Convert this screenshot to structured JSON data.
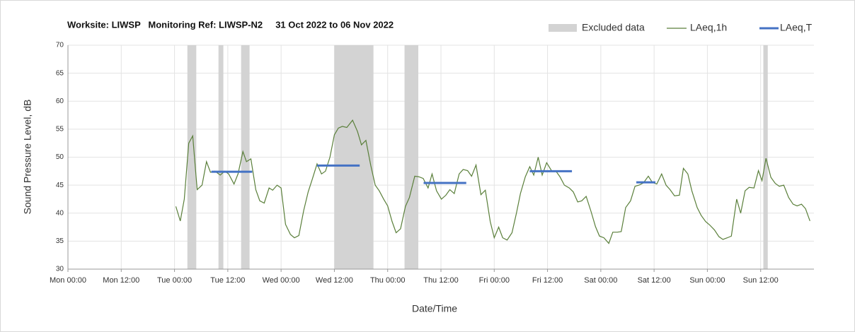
{
  "chart_data": {
    "type": "line",
    "title": "Worksite: LIWSP   Monitoring Ref: LIWSP-N2     31 Oct 2022 to 06 Nov 2022",
    "xlabel": "Date/Time",
    "ylabel": "Sound Pressure Level, dB",
    "xlim": [
      0,
      168
    ],
    "xticks": [
      {
        "value": 0,
        "label": "Mon 00:00"
      },
      {
        "value": 12,
        "label": "Mon 12:00"
      },
      {
        "value": 24,
        "label": "Tue 00:00"
      },
      {
        "value": 36,
        "label": "Tue 12:00"
      },
      {
        "value": 48,
        "label": "Wed 00:00"
      },
      {
        "value": 60,
        "label": "Wed 12:00"
      },
      {
        "value": 72,
        "label": "Thu 00:00"
      },
      {
        "value": 84,
        "label": "Thu 12:00"
      },
      {
        "value": 96,
        "label": "Fri 00:00"
      },
      {
        "value": 108,
        "label": "Fri 12:00"
      },
      {
        "value": 120,
        "label": "Sat 00:00"
      },
      {
        "value": 132,
        "label": "Sat 12:00"
      },
      {
        "value": 144,
        "label": "Sun 00:00"
      },
      {
        "value": 156,
        "label": "Sun 12:00"
      }
    ],
    "ylim": [
      30,
      70
    ],
    "yticks": [
      30,
      35,
      40,
      45,
      50,
      55,
      60,
      65,
      70
    ],
    "grid": true,
    "excluded": {
      "name": "Excluded data",
      "color": "#d3d3d3",
      "ranges": [
        [
          26.9,
          28.9
        ],
        [
          33.9,
          35
        ],
        [
          39,
          40.9
        ],
        [
          60,
          68.8
        ],
        [
          75.8,
          78.9
        ],
        [
          156.6,
          157.6
        ]
      ]
    },
    "series": [
      {
        "name": "LAeq,1h",
        "color": "#5a7f3a",
        "x": [
          24.3,
          25.3,
          26.2,
          27.2,
          28.1,
          29.1,
          30.2,
          31.2,
          32.1,
          33.1,
          34.3,
          35.3,
          36.2,
          37.4,
          38.3,
          39.4,
          40.2,
          41.2,
          42.3,
          43.2,
          44.2,
          45.3,
          46.1,
          47.1,
          48,
          49,
          50.1,
          51,
          52,
          53.1,
          54.1,
          55,
          56.1,
          57.1,
          58,
          59,
          60,
          60.9,
          61.8,
          62.8,
          64.1,
          65.2,
          66.1,
          67.1,
          68.2,
          69.2,
          70.1,
          71.1,
          72,
          73,
          73.9,
          74.9,
          76,
          76.9,
          78.1,
          79,
          80,
          81.1,
          82,
          83,
          84.1,
          85.1,
          86,
          87,
          88.1,
          89,
          90,
          90.9,
          91.9,
          93,
          94,
          95.1,
          96,
          97,
          97.9,
          98.9,
          100,
          101,
          101.9,
          103,
          104,
          104.9,
          105.9,
          106.8,
          107.8,
          108.9,
          109.9,
          110.8,
          111.8,
          112.9,
          113.8,
          114.8,
          115.7,
          116.7,
          117.8,
          118.8,
          119.7,
          120.7,
          121.8,
          122.7,
          123.7,
          124.6,
          125.6,
          126.7,
          127.7,
          128.6,
          129.6,
          130.7,
          131.6,
          132.6,
          133.7,
          134.7,
          135.6,
          136.6,
          137.7,
          138.6,
          139.6,
          140.5,
          141.7,
          142.6,
          143.6,
          144.5,
          145.6,
          146.6,
          147.5,
          148.5,
          149.4,
          150.6,
          151.5,
          152.5,
          153.4,
          154.5,
          155.5,
          156.3,
          157.2,
          158.3,
          159.3,
          160.2,
          161.2,
          162.3,
          163.3,
          164.2,
          165.2,
          166.1,
          167.1
        ],
        "values": [
          41.2,
          38.6,
          42.5,
          52.5,
          53.8,
          44.2,
          45,
          49.2,
          47.3,
          47.5,
          46.8,
          47.5,
          47,
          45.2,
          47,
          51,
          49.2,
          49.7,
          44.2,
          42.2,
          41.8,
          44.5,
          44.1,
          45,
          44.5,
          38,
          36.2,
          35.6,
          36,
          40.5,
          43.8,
          46,
          48.8,
          47,
          47.5,
          50,
          54,
          55.2,
          55.5,
          55.3,
          56.6,
          54.6,
          52.2,
          53,
          48.5,
          45,
          44,
          42.5,
          41.3,
          38.5,
          36.5,
          37.2,
          41.2,
          42.8,
          46.6,
          46.5,
          46.2,
          44.5,
          47,
          44,
          42.5,
          43.2,
          44.2,
          43.5,
          47,
          47.8,
          47.6,
          46.6,
          48.6,
          43.3,
          44.1,
          38.5,
          35.6,
          37.5,
          35.6,
          35.2,
          36.5,
          40,
          43.5,
          46.5,
          48.3,
          46.8,
          50,
          46.8,
          49,
          47.6,
          47.5,
          46.5,
          45,
          44.5,
          43.8,
          42,
          42.2,
          43,
          40.3,
          37.6,
          35.9,
          35.6,
          34.6,
          36.6,
          36.6,
          36.7,
          41,
          42.2,
          44.8,
          45,
          45.4,
          46.6,
          45.5,
          45.2,
          47,
          45,
          44.2,
          43.1,
          43.2,
          48,
          47,
          44,
          41,
          39.6,
          38.5,
          37.9,
          37,
          35.8,
          35.3,
          35.6,
          35.9,
          42.5,
          40,
          44,
          44.6,
          44.5,
          47.6,
          45.8,
          49.8,
          46.4,
          45.3,
          44.8,
          45,
          42.8,
          41.6,
          41.3,
          41.6,
          40.8,
          38.6
        ]
      },
      {
        "name": "LAeq,T",
        "color": "#4472c4",
        "segments": [
          {
            "x": [
              32.3,
              41.5
            ],
            "value": 47.4
          },
          {
            "x": [
              56.1,
              65.7
            ],
            "value": 48.5
          },
          {
            "x": [
              80.1,
              89.7
            ],
            "value": 45.4
          },
          {
            "x": [
              104,
              113.5
            ],
            "value": 47.5
          },
          {
            "x": [
              128,
              132.3
            ],
            "value": 45.5
          }
        ]
      }
    ]
  }
}
